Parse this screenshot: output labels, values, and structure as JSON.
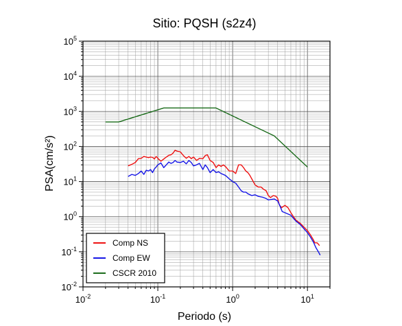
{
  "chart_data": {
    "type": "line",
    "title": "Sitio: PQSH (s2z4)",
    "xlabel": "Periodo (s)",
    "ylabel": "PSA(cm/s²)",
    "xscale": "log",
    "yscale": "log",
    "xlim": [
      0.01,
      20
    ],
    "ylim": [
      0.01,
      100000
    ],
    "grid": true,
    "legend_position": "bottom-left",
    "x_ticks": [
      {
        "base": "10",
        "exp": "-2",
        "value": 0.01
      },
      {
        "base": "10",
        "exp": "-1",
        "value": 0.1
      },
      {
        "base": "10",
        "exp": "0",
        "value": 1
      },
      {
        "base": "10",
        "exp": "1",
        "value": 10
      }
    ],
    "y_ticks": [
      {
        "base": "10",
        "exp": "-2",
        "value": 0.01
      },
      {
        "base": "10",
        "exp": "-1",
        "value": 0.1
      },
      {
        "base": "10",
        "exp": "0",
        "value": 1
      },
      {
        "base": "10",
        "exp": "1",
        "value": 10
      },
      {
        "base": "10",
        "exp": "2",
        "value": 100
      },
      {
        "base": "10",
        "exp": "3",
        "value": 1000
      },
      {
        "base": "10",
        "exp": "4",
        "value": 10000
      },
      {
        "base": "10",
        "exp": "5",
        "value": 100000
      }
    ],
    "series": [
      {
        "name": "Comp NS",
        "color": "#ee1111",
        "points": [
          [
            0.04,
            28
          ],
          [
            0.045,
            31
          ],
          [
            0.05,
            35
          ],
          [
            0.055,
            45
          ],
          [
            0.06,
            46
          ],
          [
            0.065,
            52
          ],
          [
            0.07,
            50
          ],
          [
            0.075,
            48
          ],
          [
            0.08,
            50
          ],
          [
            0.085,
            49
          ],
          [
            0.09,
            44
          ],
          [
            0.095,
            52
          ],
          [
            0.1,
            46
          ],
          [
            0.11,
            38
          ],
          [
            0.12,
            44
          ],
          [
            0.13,
            50
          ],
          [
            0.14,
            56
          ],
          [
            0.15,
            58
          ],
          [
            0.16,
            65
          ],
          [
            0.17,
            78
          ],
          [
            0.18,
            74
          ],
          [
            0.2,
            70
          ],
          [
            0.22,
            55
          ],
          [
            0.24,
            46
          ],
          [
            0.26,
            52
          ],
          [
            0.28,
            45
          ],
          [
            0.3,
            50
          ],
          [
            0.33,
            40
          ],
          [
            0.36,
            46
          ],
          [
            0.4,
            45
          ],
          [
            0.43,
            55
          ],
          [
            0.46,
            58
          ],
          [
            0.5,
            40
          ],
          [
            0.55,
            35
          ],
          [
            0.6,
            25
          ],
          [
            0.65,
            30
          ],
          [
            0.7,
            27
          ],
          [
            0.75,
            30
          ],
          [
            0.8,
            27
          ],
          [
            0.9,
            20
          ],
          [
            1.0,
            20
          ],
          [
            1.1,
            17
          ],
          [
            1.2,
            30
          ],
          [
            1.3,
            30
          ],
          [
            1.4,
            25
          ],
          [
            1.5,
            20
          ],
          [
            1.6,
            18
          ],
          [
            1.7,
            15
          ],
          [
            1.8,
            12
          ],
          [
            2.0,
            8
          ],
          [
            2.2,
            7
          ],
          [
            2.4,
            7
          ],
          [
            2.6,
            6
          ],
          [
            2.8,
            5.5
          ],
          [
            3.0,
            4
          ],
          [
            3.2,
            3.5
          ],
          [
            3.5,
            4
          ],
          [
            3.8,
            3.8
          ],
          [
            4.0,
            3.3
          ],
          [
            4.2,
            2.2
          ],
          [
            4.5,
            1.8
          ],
          [
            5.0,
            2.1
          ],
          [
            5.5,
            1.8
          ],
          [
            6.0,
            1.3
          ],
          [
            6.5,
            1.0
          ],
          [
            7.0,
            0.8
          ],
          [
            8.0,
            0.65
          ],
          [
            9.0,
            0.5
          ],
          [
            10.0,
            0.4
          ],
          [
            11.0,
            0.3
          ],
          [
            12.0,
            0.22
          ],
          [
            12.5,
            0.18
          ],
          [
            13.5,
            0.18
          ],
          [
            14.5,
            0.15
          ]
        ]
      },
      {
        "name": "Comp EW",
        "color": "#1515e6",
        "points": [
          [
            0.04,
            14
          ],
          [
            0.045,
            16
          ],
          [
            0.05,
            15
          ],
          [
            0.055,
            17
          ],
          [
            0.06,
            20
          ],
          [
            0.065,
            16
          ],
          [
            0.07,
            21
          ],
          [
            0.075,
            20
          ],
          [
            0.08,
            22
          ],
          [
            0.085,
            18
          ],
          [
            0.09,
            23
          ],
          [
            0.095,
            26
          ],
          [
            0.1,
            30
          ],
          [
            0.11,
            34
          ],
          [
            0.12,
            25
          ],
          [
            0.13,
            30
          ],
          [
            0.14,
            36
          ],
          [
            0.15,
            33
          ],
          [
            0.16,
            35
          ],
          [
            0.17,
            40
          ],
          [
            0.18,
            36
          ],
          [
            0.2,
            35
          ],
          [
            0.22,
            38
          ],
          [
            0.24,
            32
          ],
          [
            0.26,
            40
          ],
          [
            0.28,
            35
          ],
          [
            0.3,
            28
          ],
          [
            0.33,
            30
          ],
          [
            0.36,
            33
          ],
          [
            0.4,
            22
          ],
          [
            0.43,
            30
          ],
          [
            0.46,
            25
          ],
          [
            0.5,
            18
          ],
          [
            0.55,
            22
          ],
          [
            0.6,
            18
          ],
          [
            0.65,
            19
          ],
          [
            0.7,
            17
          ],
          [
            0.8,
            15
          ],
          [
            0.9,
            12
          ],
          [
            1.0,
            10
          ],
          [
            1.1,
            9
          ],
          [
            1.2,
            7
          ],
          [
            1.3,
            5.5
          ],
          [
            1.4,
            5
          ],
          [
            1.5,
            5
          ],
          [
            1.6,
            4.5
          ],
          [
            1.8,
            4
          ],
          [
            2.0,
            4.2
          ],
          [
            2.2,
            3.8
          ],
          [
            2.5,
            3.6
          ],
          [
            2.8,
            3.3
          ],
          [
            3.0,
            3
          ],
          [
            3.3,
            3.1
          ],
          [
            3.6,
            3.2
          ],
          [
            4.0,
            2.8
          ],
          [
            4.3,
            2.0
          ],
          [
            4.6,
            1.4
          ],
          [
            5.0,
            1.3
          ],
          [
            6.0,
            1.1
          ],
          [
            6.5,
            0.9
          ],
          [
            7.0,
            0.75
          ],
          [
            8.0,
            0.6
          ],
          [
            9.0,
            0.45
          ],
          [
            10.0,
            0.35
          ],
          [
            11.0,
            0.26
          ],
          [
            12.0,
            0.19
          ],
          [
            13.0,
            0.13
          ],
          [
            14.0,
            0.1
          ],
          [
            14.8,
            0.08
          ]
        ]
      },
      {
        "name": "CSCR 2010",
        "color": "#1a6b1a",
        "points": [
          [
            0.02,
            500
          ],
          [
            0.03,
            500
          ],
          [
            0.12,
            1250
          ],
          [
            0.6,
            1250
          ],
          [
            3.6,
            200
          ],
          [
            10.0,
            26
          ]
        ]
      }
    ]
  }
}
